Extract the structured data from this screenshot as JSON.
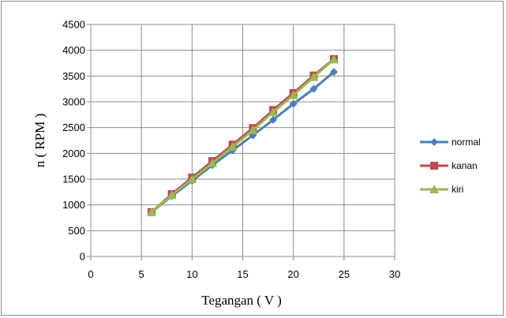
{
  "chart_data": {
    "type": "line",
    "title": "",
    "xlabel": "Tegangan ( V )",
    "ylabel": "n ( RPM )",
    "xlim": [
      0,
      30
    ],
    "ylim": [
      0,
      4500
    ],
    "xticks": [
      0,
      5,
      10,
      15,
      20,
      25,
      30
    ],
    "yticks": [
      0,
      500,
      1000,
      1500,
      2000,
      2500,
      3000,
      3500,
      4000,
      4500
    ],
    "grid": true,
    "legend_position": "right",
    "series": [
      {
        "name": "normal",
        "color": "#4a7ebb",
        "marker": "diamond",
        "x": [
          6,
          8,
          10,
          12,
          14,
          16,
          18,
          20,
          22,
          24
        ],
        "y": [
          860,
          1170,
          1470,
          1770,
          2060,
          2350,
          2650,
          2960,
          3250,
          3580
        ]
      },
      {
        "name": "kanan",
        "color": "#be4b48",
        "marker": "square",
        "x": [
          6,
          8,
          10,
          12,
          14,
          16,
          18,
          20,
          22,
          24
        ],
        "y": [
          860,
          1210,
          1530,
          1850,
          2170,
          2490,
          2840,
          3170,
          3510,
          3830
        ]
      },
      {
        "name": "kiri",
        "color": "#98b954",
        "marker": "triangle",
        "x": [
          6,
          8,
          10,
          12,
          14,
          16,
          18,
          20,
          22,
          24
        ],
        "y": [
          860,
          1190,
          1500,
          1810,
          2130,
          2450,
          2800,
          3130,
          3480,
          3820
        ]
      }
    ]
  }
}
